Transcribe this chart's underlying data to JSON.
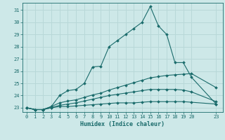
{
  "title": "",
  "xlabel": "Humidex (Indice chaleur)",
  "ylabel": "",
  "background_color": "#cde8e8",
  "grid_color": "#b8d8d8",
  "line_color": "#1a6b6b",
  "xlim": [
    -0.5,
    23.8
  ],
  "ylim": [
    22.65,
    31.6
  ],
  "xtick_labels": [
    "0",
    "1",
    "2",
    "3",
    "4",
    "5",
    "6",
    "7",
    "8",
    "9",
    "10",
    "11",
    "12",
    "13",
    "14",
    "15",
    "16",
    "17",
    "18",
    "19",
    "20",
    "23"
  ],
  "xtick_vals": [
    0,
    1,
    2,
    3,
    4,
    5,
    6,
    7,
    8,
    9,
    10,
    11,
    12,
    13,
    14,
    15,
    16,
    17,
    18,
    19,
    20,
    23
  ],
  "yticks": [
    23,
    24,
    25,
    26,
    27,
    28,
    29,
    30,
    31
  ],
  "lines": [
    {
      "x": [
        0,
        1,
        2,
        3,
        4,
        5,
        6,
        7,
        8,
        9,
        10,
        11,
        12,
        13,
        14,
        15,
        16,
        17,
        18,
        19,
        20,
        23
      ],
      "y": [
        23.0,
        22.85,
        22.85,
        23.1,
        24.0,
        24.4,
        24.5,
        25.0,
        26.35,
        26.4,
        28.0,
        28.5,
        29.0,
        29.5,
        30.0,
        31.3,
        29.7,
        29.0,
        26.7,
        26.7,
        25.5,
        23.3
      ]
    },
    {
      "x": [
        0,
        1,
        2,
        3,
        4,
        5,
        6,
        7,
        8,
        9,
        10,
        11,
        12,
        13,
        14,
        15,
        16,
        17,
        18,
        19,
        20,
        23
      ],
      "y": [
        23.0,
        22.85,
        22.85,
        23.1,
        23.4,
        23.55,
        23.65,
        23.85,
        24.05,
        24.2,
        24.45,
        24.65,
        24.85,
        25.05,
        25.25,
        25.45,
        25.55,
        25.65,
        25.7,
        25.75,
        25.8,
        24.65
      ]
    },
    {
      "x": [
        0,
        1,
        2,
        3,
        4,
        5,
        6,
        7,
        8,
        9,
        10,
        11,
        12,
        13,
        14,
        15,
        16,
        17,
        18,
        19,
        20,
        23
      ],
      "y": [
        23.0,
        22.85,
        22.85,
        23.0,
        23.2,
        23.3,
        23.4,
        23.55,
        23.7,
        23.85,
        24.0,
        24.1,
        24.2,
        24.3,
        24.4,
        24.5,
        24.5,
        24.5,
        24.5,
        24.45,
        24.3,
        23.5
      ]
    },
    {
      "x": [
        0,
        1,
        2,
        3,
        4,
        5,
        6,
        7,
        8,
        9,
        10,
        11,
        12,
        13,
        14,
        15,
        16,
        17,
        18,
        19,
        20,
        23
      ],
      "y": [
        23.0,
        22.85,
        22.85,
        23.0,
        23.1,
        23.1,
        23.15,
        23.2,
        23.25,
        23.3,
        23.35,
        23.4,
        23.4,
        23.4,
        23.45,
        23.5,
        23.5,
        23.5,
        23.5,
        23.5,
        23.45,
        23.3
      ]
    }
  ]
}
